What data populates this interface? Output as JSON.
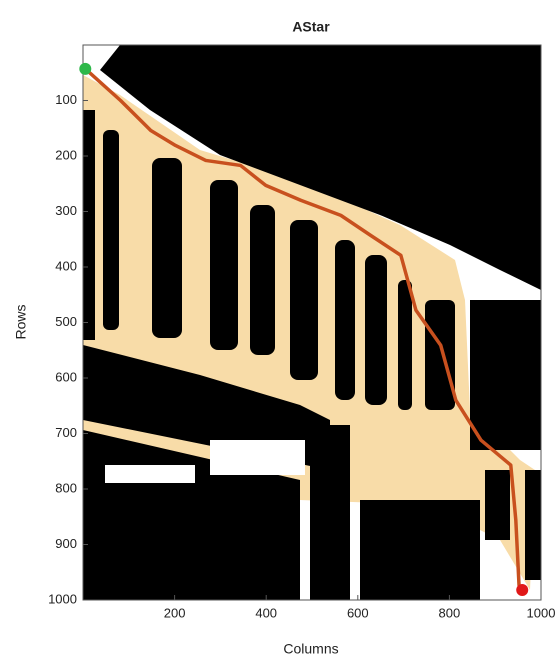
{
  "chart_data": {
    "type": "line",
    "title": "AStar",
    "xlabel": "Columns",
    "ylabel": "Rows",
    "xlim": [
      0,
      1000
    ],
    "ylim": [
      0,
      1000
    ],
    "y_reversed": true,
    "xticks": [
      200,
      400,
      600,
      800,
      1000
    ],
    "yticks": [
      100,
      200,
      300,
      400,
      500,
      600,
      700,
      800,
      900,
      1000
    ],
    "series": [
      {
        "color": "#c8501e",
        "x": [
          5,
          82,
          148,
          202,
          268,
          344,
          399,
          476,
          563,
          628,
          694,
          727,
          781,
          814,
          869,
          934,
          945,
          952
        ],
        "y": [
          43,
          100,
          154,
          181,
          208,
          217,
          253,
          280,
          307,
          343,
          379,
          478,
          541,
          640,
          712,
          757,
          856,
          973
        ]
      }
    ],
    "start": {
      "x": 5,
      "y": 43,
      "color": "#2eb84a"
    },
    "goal": {
      "x": 959,
      "y": 982,
      "color": "#e01818"
    }
  }
}
